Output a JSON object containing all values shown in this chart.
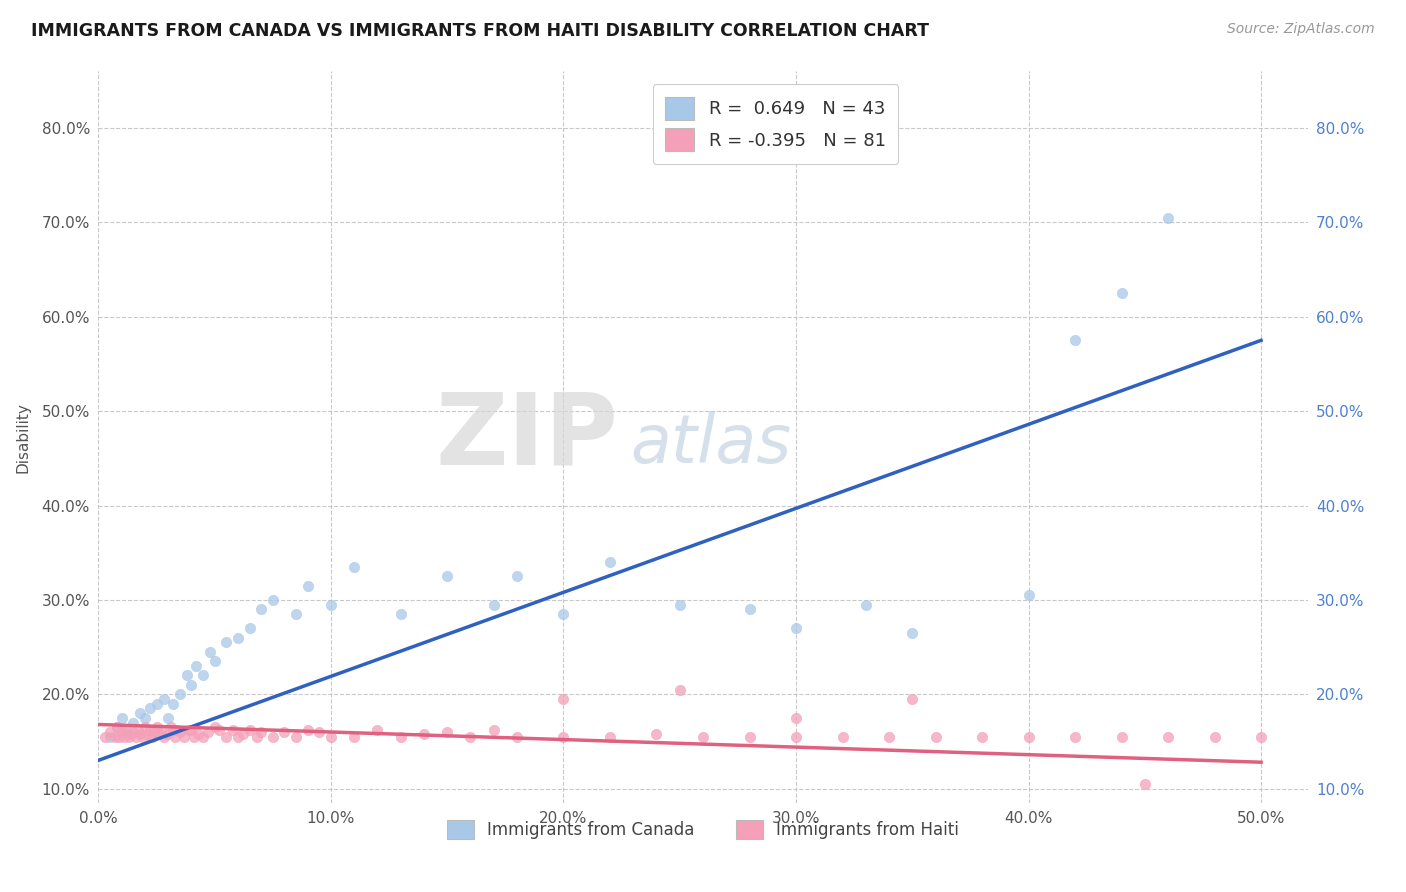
{
  "title": "IMMIGRANTS FROM CANADA VS IMMIGRANTS FROM HAITI DISABILITY CORRELATION CHART",
  "source": "Source: ZipAtlas.com",
  "ylabel": "Disability",
  "color_canada": "#A8C8E8",
  "color_haiti": "#F4A0B8",
  "line_color_canada": "#3060C0",
  "line_color_haiti": "#E06080",
  "legend_label1": "R =  0.649   N = 43",
  "legend_label2": "R = -0.395   N = 81",
  "legend_label_canada": "Immigrants from Canada",
  "legend_label_haiti": "Immigrants from Haiti",
  "xlim": [
    0.0,
    0.52
  ],
  "ylim": [
    0.085,
    0.86
  ],
  "x_ticks": [
    0.0,
    0.1,
    0.2,
    0.3,
    0.4,
    0.5
  ],
  "y_ticks": [
    0.1,
    0.2,
    0.3,
    0.4,
    0.5,
    0.6,
    0.7,
    0.8
  ],
  "canada_x": [
    0.005,
    0.008,
    0.01,
    0.012,
    0.015,
    0.018,
    0.02,
    0.022,
    0.025,
    0.028,
    0.03,
    0.032,
    0.035,
    0.038,
    0.04,
    0.042,
    0.045,
    0.048,
    0.05,
    0.055,
    0.06,
    0.065,
    0.07,
    0.075,
    0.085,
    0.09,
    0.1,
    0.11,
    0.13,
    0.15,
    0.17,
    0.18,
    0.2,
    0.22,
    0.25,
    0.28,
    0.3,
    0.33,
    0.35,
    0.4,
    0.42,
    0.44,
    0.46
  ],
  "canada_y": [
    0.155,
    0.165,
    0.175,
    0.16,
    0.17,
    0.18,
    0.175,
    0.185,
    0.19,
    0.195,
    0.175,
    0.19,
    0.2,
    0.22,
    0.21,
    0.23,
    0.22,
    0.245,
    0.235,
    0.255,
    0.26,
    0.27,
    0.29,
    0.3,
    0.285,
    0.315,
    0.295,
    0.335,
    0.285,
    0.325,
    0.295,
    0.325,
    0.285,
    0.34,
    0.295,
    0.29,
    0.27,
    0.295,
    0.265,
    0.305,
    0.575,
    0.625,
    0.705
  ],
  "haiti_x": [
    0.003,
    0.005,
    0.007,
    0.008,
    0.009,
    0.01,
    0.011,
    0.012,
    0.013,
    0.014,
    0.015,
    0.016,
    0.017,
    0.018,
    0.019,
    0.02,
    0.021,
    0.022,
    0.023,
    0.024,
    0.025,
    0.026,
    0.027,
    0.028,
    0.03,
    0.031,
    0.032,
    0.033,
    0.034,
    0.035,
    0.037,
    0.039,
    0.04,
    0.041,
    0.043,
    0.045,
    0.047,
    0.05,
    0.052,
    0.055,
    0.058,
    0.06,
    0.062,
    0.065,
    0.068,
    0.07,
    0.075,
    0.08,
    0.085,
    0.09,
    0.095,
    0.1,
    0.11,
    0.12,
    0.13,
    0.14,
    0.15,
    0.16,
    0.17,
    0.18,
    0.2,
    0.22,
    0.24,
    0.26,
    0.28,
    0.3,
    0.32,
    0.34,
    0.36,
    0.38,
    0.4,
    0.42,
    0.44,
    0.46,
    0.48,
    0.5,
    0.2,
    0.25,
    0.3,
    0.35,
    0.45
  ],
  "haiti_y": [
    0.155,
    0.16,
    0.155,
    0.165,
    0.155,
    0.16,
    0.155,
    0.162,
    0.155,
    0.158,
    0.16,
    0.155,
    0.162,
    0.158,
    0.155,
    0.165,
    0.158,
    0.162,
    0.155,
    0.16,
    0.165,
    0.158,
    0.162,
    0.155,
    0.158,
    0.165,
    0.162,
    0.155,
    0.162,
    0.16,
    0.155,
    0.162,
    0.162,
    0.155,
    0.158,
    0.155,
    0.16,
    0.165,
    0.162,
    0.155,
    0.162,
    0.155,
    0.158,
    0.162,
    0.155,
    0.16,
    0.155,
    0.16,
    0.155,
    0.162,
    0.16,
    0.155,
    0.155,
    0.162,
    0.155,
    0.158,
    0.16,
    0.155,
    0.162,
    0.155,
    0.155,
    0.155,
    0.158,
    0.155,
    0.155,
    0.155,
    0.155,
    0.155,
    0.155,
    0.155,
    0.155,
    0.155,
    0.155,
    0.155,
    0.155,
    0.155,
    0.195,
    0.205,
    0.175,
    0.195,
    0.105
  ],
  "canada_line_x0": 0.0,
  "canada_line_y0": 0.13,
  "canada_line_x1": 0.5,
  "canada_line_y1": 0.575,
  "haiti_line_x0": 0.0,
  "haiti_line_y0": 0.168,
  "haiti_line_x1": 0.5,
  "haiti_line_y1": 0.128
}
